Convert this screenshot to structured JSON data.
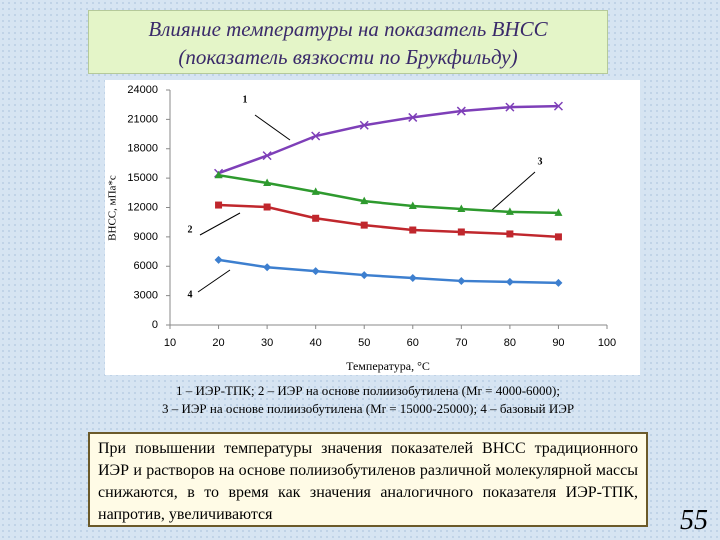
{
  "chart_data": {
    "type": "line",
    "title": [
      "Влияние температуры на показатель ВНСС",
      "(показатель вязкости по Брукфильду)"
    ],
    "x_label": "Температура, °С",
    "y_label": "ВНСС, мПа*с",
    "x": [
      20,
      30,
      40,
      50,
      60,
      70,
      80,
      90
    ],
    "series": [
      {
        "name": "1",
        "color": "#7e3fb8",
        "marker": "x",
        "values": [
          15500,
          17300,
          19300,
          20400,
          21200,
          21850,
          22250,
          22350
        ]
      },
      {
        "name": "2",
        "color": "#c0272d",
        "marker": "square",
        "values": [
          12250,
          12050,
          10900,
          10200,
          9700,
          9500,
          9300,
          9000
        ]
      },
      {
        "name": "3",
        "color": "#2e9a2e",
        "marker": "triangle",
        "values": [
          15300,
          14500,
          13600,
          12650,
          12150,
          11850,
          11550,
          11450
        ]
      },
      {
        "name": "4",
        "color": "#3d7fcf",
        "marker": "diamond",
        "values": [
          6650,
          5900,
          5500,
          5100,
          4800,
          4500,
          4400,
          4300
        ]
      }
    ],
    "xlim": [
      10,
      100
    ],
    "xticks": [
      10,
      20,
      30,
      40,
      50,
      60,
      70,
      80,
      90,
      100
    ],
    "ylim": [
      0,
      24000
    ],
    "yticks": [
      0,
      3000,
      6000,
      9000,
      12000,
      15000,
      18000,
      21000,
      24000
    ],
    "grid": false
  },
  "caption": [
    "1 – ИЭР-ТПК; 2 – ИЭР на основе полиизобутилена (Mr = 4000-6000);",
    "3 – ИЭР на основе полиизобутилена (Mr = 15000-25000); 4 – базовый ИЭР"
  ],
  "conclusion": "При повышении температуры значения показателей ВНСС традиционного ИЭР и растворов на основе полиизобутиленов различной молекулярной массы снижаются, в то время как значения аналогичного показателя ИЭР-ТПК, напротив, увеличиваются",
  "slide_number": "55"
}
